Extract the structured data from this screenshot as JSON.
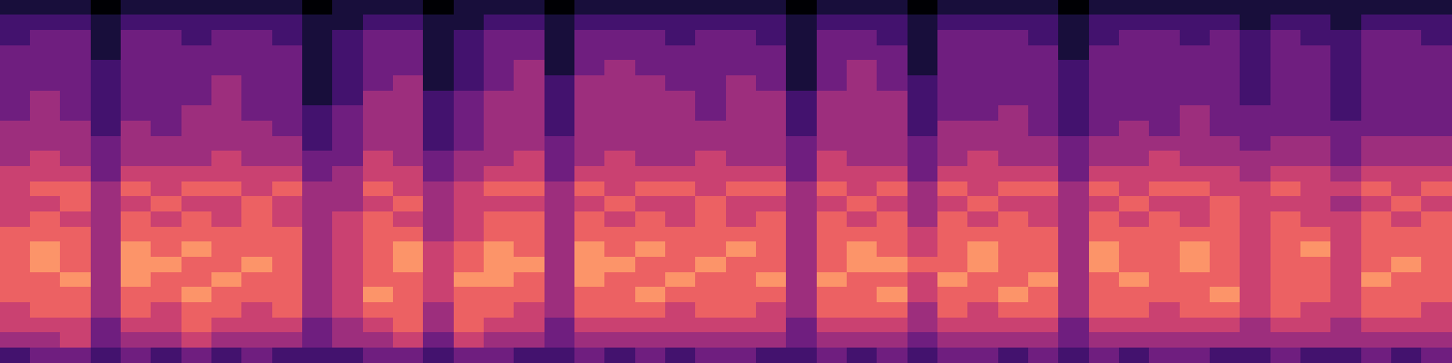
{
  "chart_data": {
    "type": "heatmap",
    "tick_labels": false,
    "zlim": [
      0,
      9
    ],
    "cells": [
      [
        1,
        1,
        1,
        0,
        1,
        1,
        1,
        1,
        1,
        1,
        0,
        1,
        1,
        1,
        0,
        1,
        1,
        1,
        0,
        1,
        1,
        1,
        1,
        1,
        1,
        1,
        0,
        1,
        1,
        1,
        0,
        1,
        1,
        1,
        1,
        0,
        1,
        1,
        1,
        1,
        1,
        1,
        1,
        1,
        1,
        1,
        1,
        1
      ],
      [
        2,
        2,
        2,
        1,
        2,
        2,
        2,
        2,
        2,
        2,
        1,
        1,
        2,
        2,
        1,
        1,
        2,
        2,
        1,
        2,
        2,
        2,
        2,
        2,
        2,
        2,
        1,
        2,
        2,
        2,
        1,
        2,
        2,
        2,
        2,
        1,
        2,
        2,
        2,
        2,
        2,
        1,
        2,
        2,
        1,
        2,
        2,
        2
      ],
      [
        2,
        3,
        3,
        1,
        3,
        3,
        2,
        3,
        3,
        2,
        1,
        2,
        3,
        3,
        1,
        2,
        3,
        3,
        1,
        3,
        3,
        3,
        2,
        3,
        3,
        2,
        1,
        3,
        3,
        2,
        1,
        3,
        3,
        3,
        2,
        1,
        2,
        3,
        3,
        2,
        3,
        2,
        3,
        2,
        2,
        3,
        3,
        2
      ],
      [
        3,
        3,
        3,
        1,
        3,
        3,
        3,
        3,
        3,
        3,
        1,
        2,
        3,
        3,
        1,
        2,
        3,
        3,
        1,
        3,
        3,
        3,
        3,
        3,
        3,
        3,
        1,
        3,
        3,
        3,
        1,
        3,
        3,
        3,
        3,
        1,
        3,
        3,
        3,
        3,
        3,
        2,
        3,
        3,
        2,
        3,
        3,
        3
      ],
      [
        3,
        3,
        3,
        2,
        3,
        3,
        3,
        3,
        3,
        3,
        1,
        2,
        3,
        3,
        1,
        2,
        3,
        4,
        1,
        3,
        4,
        3,
        3,
        3,
        3,
        3,
        1,
        3,
        4,
        3,
        1,
        3,
        3,
        3,
        3,
        2,
        3,
        3,
        3,
        3,
        3,
        2,
        3,
        3,
        2,
        3,
        3,
        3
      ],
      [
        3,
        3,
        3,
        2,
        3,
        3,
        3,
        4,
        3,
        3,
        1,
        2,
        3,
        4,
        1,
        2,
        3,
        4,
        2,
        4,
        4,
        4,
        3,
        3,
        4,
        3,
        1,
        3,
        4,
        3,
        2,
        3,
        3,
        3,
        3,
        2,
        3,
        3,
        3,
        3,
        3,
        2,
        3,
        3,
        2,
        3,
        3,
        3
      ],
      [
        3,
        4,
        3,
        2,
        3,
        3,
        3,
        4,
        3,
        3,
        1,
        2,
        4,
        4,
        2,
        3,
        4,
        4,
        2,
        4,
        4,
        4,
        4,
        3,
        4,
        4,
        2,
        4,
        4,
        4,
        2,
        3,
        3,
        3,
        3,
        2,
        3,
        3,
        3,
        3,
        3,
        2,
        3,
        3,
        2,
        3,
        3,
        3
      ],
      [
        3,
        4,
        3,
        2,
        3,
        3,
        4,
        4,
        3,
        3,
        2,
        3,
        4,
        4,
        2,
        3,
        4,
        4,
        2,
        4,
        4,
        4,
        4,
        3,
        4,
        4,
        2,
        4,
        4,
        4,
        2,
        3,
        3,
        4,
        3,
        2,
        3,
        3,
        3,
        4,
        3,
        3,
        3,
        3,
        2,
        3,
        3,
        3
      ],
      [
        4,
        4,
        4,
        2,
        4,
        3,
        4,
        4,
        4,
        3,
        2,
        3,
        4,
        4,
        2,
        3,
        4,
        4,
        2,
        4,
        4,
        4,
        4,
        4,
        4,
        4,
        2,
        4,
        4,
        4,
        2,
        4,
        4,
        4,
        3,
        2,
        3,
        4,
        3,
        4,
        3,
        3,
        3,
        3,
        3,
        3,
        3,
        3
      ],
      [
        4,
        4,
        4,
        3,
        4,
        4,
        4,
        4,
        4,
        4,
        2,
        3,
        4,
        4,
        2,
        3,
        4,
        4,
        3,
        4,
        4,
        4,
        4,
        4,
        4,
        4,
        3,
        4,
        4,
        4,
        3,
        4,
        4,
        4,
        4,
        3,
        4,
        4,
        4,
        4,
        4,
        3,
        4,
        4,
        3,
        4,
        4,
        4
      ],
      [
        4,
        5,
        4,
        3,
        4,
        4,
        4,
        5,
        4,
        4,
        3,
        3,
        5,
        4,
        3,
        4,
        4,
        5,
        3,
        4,
        5,
        4,
        4,
        5,
        4,
        4,
        3,
        5,
        4,
        4,
        3,
        4,
        5,
        4,
        4,
        3,
        4,
        4,
        5,
        4,
        4,
        4,
        4,
        4,
        3,
        4,
        4,
        4
      ],
      [
        5,
        5,
        5,
        3,
        5,
        5,
        5,
        5,
        5,
        5,
        3,
        4,
        5,
        5,
        3,
        4,
        5,
        5,
        3,
        5,
        5,
        5,
        5,
        5,
        5,
        5,
        3,
        5,
        5,
        5,
        3,
        5,
        5,
        5,
        5,
        3,
        5,
        5,
        5,
        5,
        5,
        4,
        5,
        5,
        4,
        5,
        5,
        5
      ],
      [
        5,
        6,
        6,
        4,
        6,
        5,
        6,
        6,
        5,
        6,
        4,
        4,
        6,
        5,
        4,
        5,
        6,
        6,
        4,
        6,
        5,
        6,
        6,
        5,
        6,
        6,
        4,
        6,
        5,
        6,
        4,
        6,
        5,
        6,
        6,
        4,
        6,
        5,
        6,
        6,
        5,
        5,
        6,
        5,
        5,
        6,
        5,
        6
      ],
      [
        5,
        5,
        6,
        4,
        5,
        6,
        5,
        5,
        6,
        5,
        4,
        4,
        5,
        6,
        4,
        5,
        5,
        5,
        4,
        5,
        6,
        5,
        5,
        6,
        5,
        5,
        4,
        5,
        6,
        5,
        4,
        5,
        6,
        5,
        5,
        4,
        5,
        6,
        5,
        5,
        6,
        5,
        5,
        5,
        4,
        5,
        6,
        5
      ],
      [
        5,
        6,
        5,
        4,
        6,
        5,
        6,
        5,
        6,
        5,
        4,
        5,
        6,
        5,
        4,
        5,
        6,
        6,
        4,
        6,
        5,
        6,
        5,
        6,
        5,
        6,
        4,
        6,
        5,
        6,
        4,
        6,
        5,
        6,
        5,
        4,
        6,
        5,
        6,
        5,
        6,
        5,
        6,
        5,
        5,
        6,
        5,
        6
      ],
      [
        6,
        6,
        6,
        4,
        6,
        6,
        6,
        6,
        6,
        6,
        4,
        5,
        6,
        6,
        4,
        5,
        6,
        6,
        4,
        6,
        6,
        6,
        6,
        6,
        6,
        6,
        4,
        6,
        6,
        6,
        5,
        6,
        6,
        6,
        6,
        4,
        6,
        6,
        6,
        6,
        6,
        5,
        6,
        6,
        5,
        6,
        6,
        6
      ],
      [
        6,
        7,
        6,
        4,
        7,
        6,
        7,
        6,
        6,
        6,
        4,
        5,
        6,
        7,
        5,
        6,
        7,
        6,
        4,
        7,
        6,
        7,
        6,
        6,
        7,
        6,
        4,
        6,
        7,
        6,
        5,
        6,
        7,
        6,
        6,
        4,
        7,
        6,
        6,
        7,
        6,
        5,
        6,
        7,
        5,
        6,
        6,
        6
      ],
      [
        6,
        7,
        6,
        4,
        7,
        7,
        6,
        6,
        7,
        6,
        4,
        5,
        6,
        7,
        5,
        6,
        7,
        7,
        4,
        7,
        7,
        6,
        6,
        7,
        6,
        6,
        4,
        6,
        7,
        7,
        6,
        6,
        7,
        6,
        6,
        4,
        7,
        6,
        6,
        7,
        6,
        5,
        6,
        6,
        5,
        6,
        7,
        6
      ],
      [
        6,
        6,
        7,
        4,
        7,
        6,
        6,
        7,
        6,
        6,
        4,
        5,
        6,
        6,
        5,
        7,
        7,
        6,
        4,
        7,
        6,
        6,
        7,
        6,
        6,
        7,
        4,
        7,
        6,
        6,
        5,
        7,
        6,
        6,
        7,
        4,
        6,
        7,
        6,
        6,
        6,
        5,
        6,
        6,
        5,
        7,
        6,
        6
      ],
      [
        6,
        6,
        6,
        4,
        6,
        6,
        7,
        6,
        6,
        6,
        4,
        5,
        7,
        6,
        5,
        6,
        6,
        6,
        4,
        6,
        6,
        7,
        6,
        6,
        6,
        6,
        4,
        6,
        6,
        7,
        5,
        6,
        6,
        7,
        6,
        4,
        6,
        6,
        6,
        6,
        7,
        5,
        6,
        6,
        5,
        6,
        6,
        6
      ],
      [
        5,
        6,
        6,
        4,
        6,
        5,
        6,
        6,
        5,
        6,
        4,
        5,
        6,
        6,
        4,
        6,
        6,
        5,
        4,
        6,
        6,
        6,
        5,
        6,
        6,
        5,
        4,
        6,
        6,
        6,
        4,
        6,
        5,
        6,
        6,
        4,
        6,
        6,
        5,
        6,
        6,
        5,
        6,
        5,
        5,
        6,
        6,
        5
      ],
      [
        5,
        5,
        5,
        3,
        5,
        5,
        6,
        5,
        5,
        5,
        3,
        4,
        5,
        6,
        4,
        6,
        5,
        5,
        3,
        5,
        5,
        5,
        5,
        5,
        5,
        5,
        3,
        5,
        5,
        5,
        4,
        5,
        5,
        5,
        5,
        3,
        5,
        5,
        5,
        5,
        5,
        4,
        5,
        5,
        4,
        5,
        5,
        5
      ],
      [
        4,
        4,
        5,
        3,
        4,
        4,
        5,
        4,
        4,
        4,
        3,
        4,
        4,
        5,
        3,
        5,
        4,
        4,
        3,
        4,
        4,
        4,
        4,
        4,
        4,
        4,
        3,
        4,
        4,
        4,
        3,
        4,
        4,
        4,
        4,
        3,
        4,
        4,
        4,
        4,
        4,
        4,
        4,
        4,
        4,
        4,
        4,
        4
      ],
      [
        2,
        3,
        3,
        2,
        3,
        2,
        3,
        2,
        3,
        2,
        2,
        2,
        3,
        3,
        2,
        3,
        3,
        2,
        2,
        3,
        2,
        3,
        2,
        3,
        3,
        2,
        2,
        3,
        2,
        3,
        2,
        3,
        3,
        2,
        3,
        2,
        3,
        2,
        3,
        3,
        2,
        2,
        3,
        2,
        2,
        3,
        2,
        3
      ]
    ]
  }
}
